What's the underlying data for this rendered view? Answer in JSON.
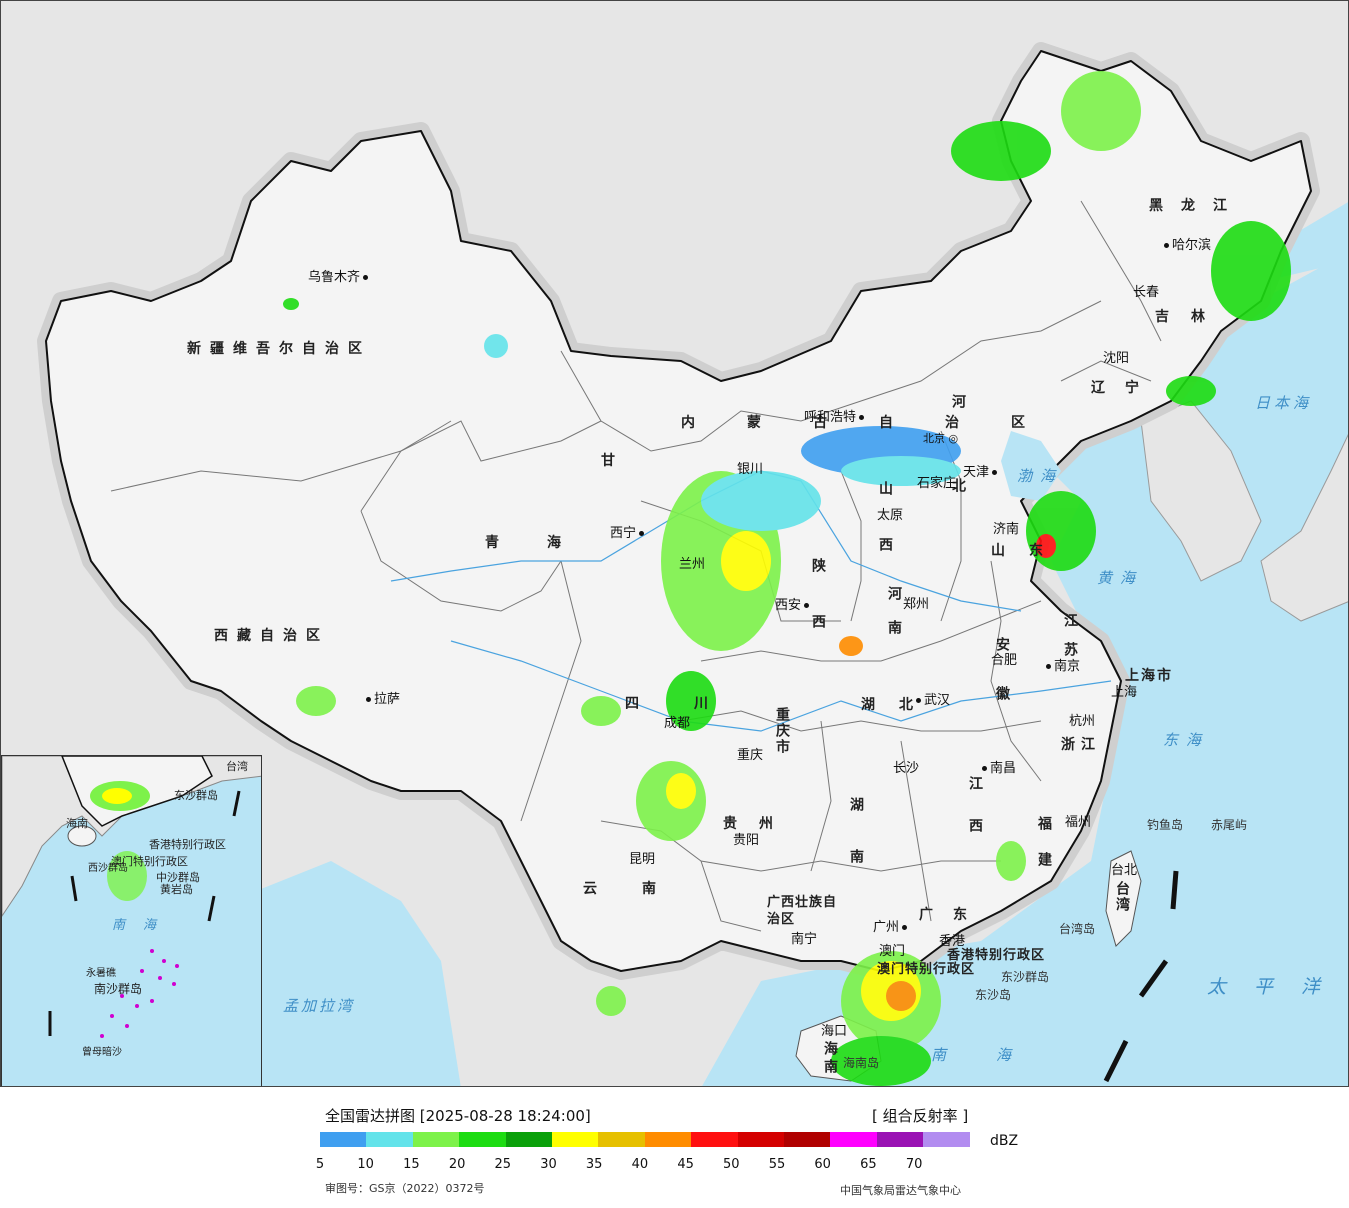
{
  "title": "全国雷达拼图 [2025-08-28 18:24:00]",
  "product": "[ 组合反射率 ]",
  "unit": "dBZ",
  "approval": "审图号：GS京（2022）0372号",
  "source": "中国气象局雷达气象中心",
  "legend": {
    "ticks": [
      "5",
      "10",
      "15",
      "20",
      "25",
      "30",
      "35",
      "40",
      "45",
      "50",
      "55",
      "60",
      "65",
      "70"
    ],
    "colors": [
      "#3f9ff0",
      "#63e3ea",
      "#7df24a",
      "#1ddc12",
      "#0aa00a",
      "#ffff00",
      "#e6c000",
      "#ff8c00",
      "#ff1010",
      "#d40000",
      "#b00000",
      "#ff00ff",
      "#9a12b4",
      "#b28cf0"
    ]
  },
  "provinces": {
    "xinjiang": "新疆维吾尔自治区",
    "xizang": "西藏自治区",
    "qinghai": "青海",
    "gansu": "甘",
    "sichuan": "四川",
    "yunnan": "云南",
    "guizhou": "贵州",
    "guangxi": "广西壮族自治区",
    "guangdong": "广东",
    "hunan": "湖南",
    "hubei": "湖北",
    "chongqing": "重庆市",
    "shaanxi": "陕西",
    "shanxi": "山西",
    "henan": "河南",
    "hebei": "河北",
    "shandong": "山东",
    "jiangsu": "江苏",
    "anhui": "安徽",
    "zhejiang": "浙江",
    "jiangxi": "江西",
    "fujian": "福建",
    "taiwan": "台湾",
    "hainan": "海南",
    "neimenggu_a": "内蒙古自治区",
    "heilongjiang": "黑龙江",
    "jilin": "吉林",
    "liaoning": "辽宁",
    "shanghai": "上海市",
    "hk": "香港特别行政区",
    "macau": "澳门特别行政区"
  },
  "cities": {
    "urumqi": "乌鲁木齐",
    "lhasa": "拉萨",
    "xining": "西宁",
    "lanzhou": "兰州",
    "yinchuan": "银川",
    "hohhot": "呼和浩特",
    "beijing": "北京",
    "tianjin": "天津",
    "shijiazhuang": "石家庄",
    "taiyuan": "太原",
    "jinan": "济南",
    "zhengzhou": "郑州",
    "xian": "西安",
    "chengdu": "成都",
    "chongqing": "重庆",
    "wuhan": "武汉",
    "hefei": "合肥",
    "nanjing": "南京",
    "shanghai": "上海",
    "hangzhou": "杭州",
    "nanchang": "南昌",
    "changsha": "长沙",
    "guiyang": "贵阳",
    "kunming": "昆明",
    "nanning": "南宁",
    "guangzhou": "广州",
    "hongkong": "香港",
    "macao": "澳门",
    "fuzhou": "福州",
    "taipei": "台北",
    "haikou": "海口",
    "shenyang": "沈阳",
    "changchun": "长春",
    "harbin": "哈尔滨"
  },
  "seas": {
    "bohai": "渤海",
    "huanghai": "黄海",
    "donghai": "东海",
    "nanhai": "南海",
    "riben": "日本海",
    "taipingyang": "太平洋",
    "mengjiala": "孟加拉湾"
  },
  "islands": {
    "diaoyu": "钓鱼岛",
    "chiwei": "赤尾屿",
    "taiwandao": "台湾岛",
    "dongsha_qd": "东沙群岛",
    "dongsha": "东沙岛",
    "hainandao": "海南岛"
  },
  "inset": {
    "nanhai": "南海",
    "zhongsha": "中沙群岛",
    "huangyan": "黄岩岛",
    "nansha": "南沙群岛",
    "zengmu": "曾母暗沙",
    "yongshu": "永暑礁",
    "xisha": "西沙群岛",
    "dongsha": "东沙群岛",
    "taiwan": "台湾",
    "hk": "香港特别行政区",
    "macau": "澳门特别行政区",
    "hainan": "海南"
  }
}
